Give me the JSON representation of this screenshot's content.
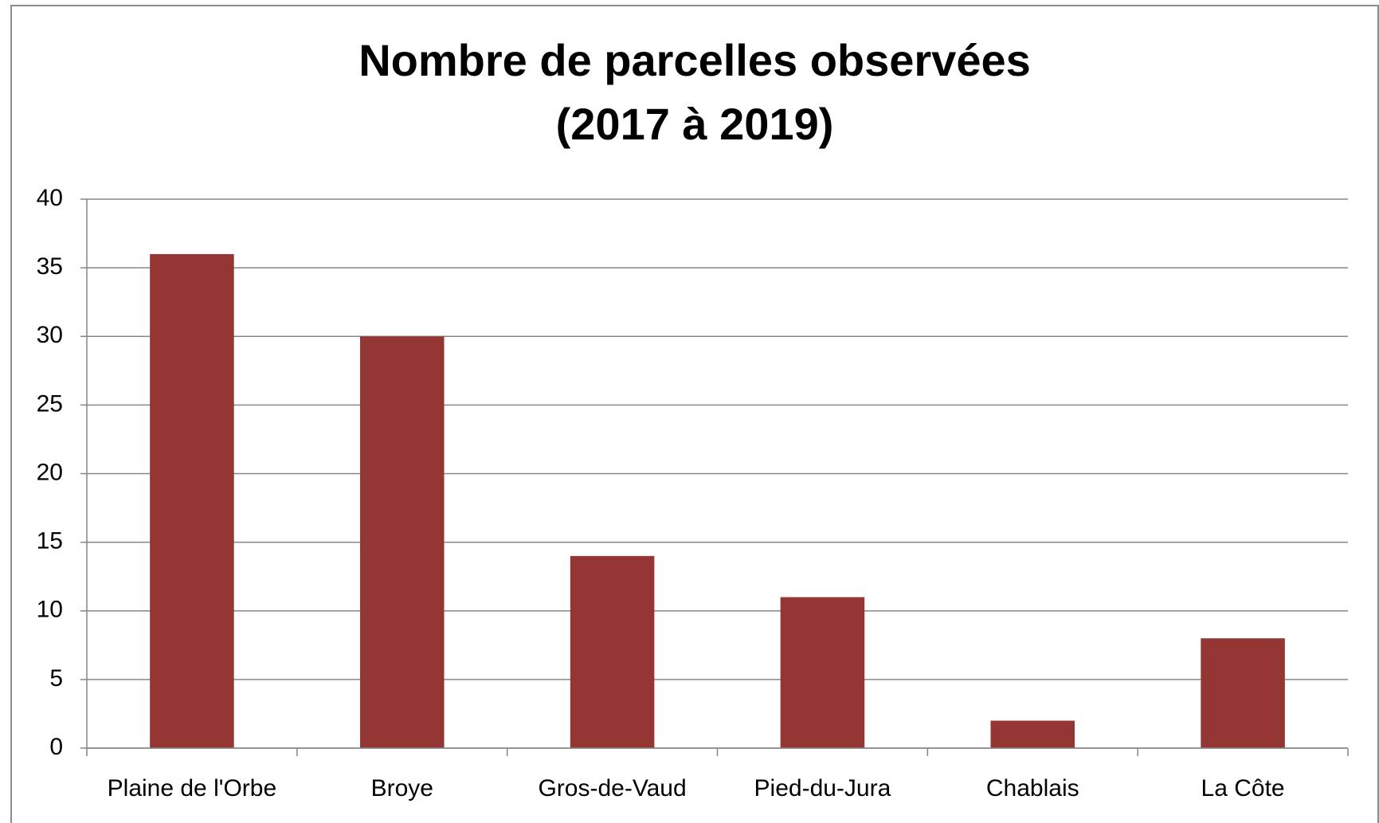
{
  "chart_data": {
    "type": "bar",
    "title": [
      "Nombre de parcelles observées",
      "(2017 à 2019)"
    ],
    "categories": [
      "Plaine de l'Orbe",
      "Broye",
      "Gros-de-Vaud",
      "Pied-du-Jura",
      "Chablais",
      "La Côte"
    ],
    "values": [
      36,
      30,
      14,
      11,
      2,
      8
    ],
    "color": "#943634",
    "ylim": [
      0,
      40
    ],
    "yticks": [
      0,
      5,
      10,
      15,
      20,
      25,
      30,
      35,
      40
    ],
    "grid": true
  }
}
